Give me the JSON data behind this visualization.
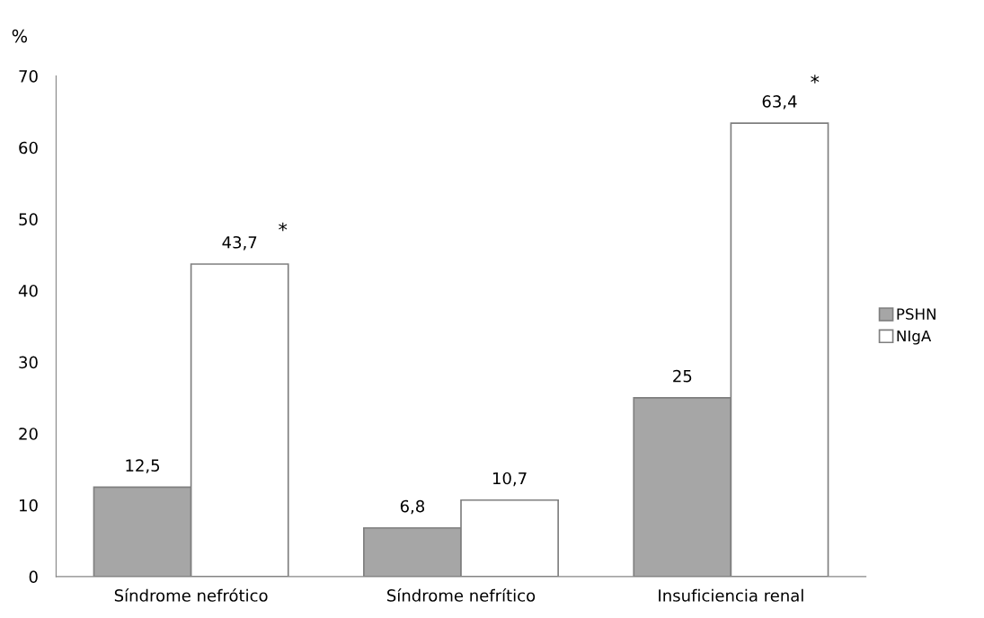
{
  "chart_data": {
    "type": "bar",
    "ylabel": "%",
    "categories": [
      "Síndrome nefrótico",
      "Síndrome nefrítico",
      "Insuficiencia renal"
    ],
    "series": [
      {
        "name": "PSHN",
        "color": "#a6a6a6",
        "values": [
          12.5,
          6.8,
          25
        ],
        "value_labels": [
          "12,5",
          "6,8",
          "25"
        ]
      },
      {
        "name": "NIgA",
        "color": "#ffffff",
        "values": [
          43.7,
          10.7,
          63.4
        ],
        "value_labels": [
          "43,7",
          "10,7",
          "63,4"
        ]
      }
    ],
    "annotations": [
      "*",
      "*"
    ],
    "ylim": [
      0,
      70
    ],
    "yticks": [
      0,
      10,
      20,
      30,
      40,
      50,
      60,
      70
    ],
    "grid": false,
    "legend": "right"
  }
}
